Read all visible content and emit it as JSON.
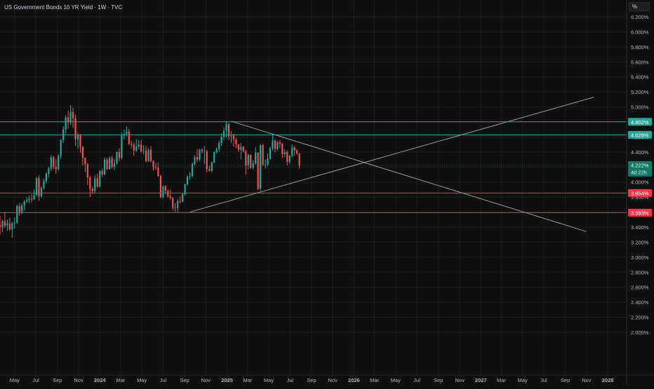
{
  "title": "US Government Bonds 10 YR Yield · 1W · TVC",
  "axis_unit_button": "%",
  "colors": {
    "background": "#0f0f0f",
    "up": "#26a69a",
    "down": "#ef5350",
    "grid": "#1c1c1c",
    "trendline": "#9a9a9a",
    "resistance": "#26a69a",
    "support": "#f23645"
  },
  "chart_data": {
    "type": "candlestick",
    "title": "US Government Bonds 10 YR Yield · 1W · TVC",
    "ylim": [
      1.9,
      6.3
    ],
    "y_ticks": [
      "6.200%",
      "6.000%",
      "5.800%",
      "5.600%",
      "5.400%",
      "5.200%",
      "5.000%",
      "4.800%",
      "4.600%",
      "4.400%",
      "4.200%",
      "4.000%",
      "3.800%",
      "3.600%",
      "3.400%",
      "3.200%",
      "3.000%",
      "2.800%",
      "2.600%",
      "2.400%",
      "2.200%",
      "2.000%"
    ],
    "x_ticks": [
      {
        "label": "May",
        "date": "2023-05-01",
        "bold": false
      },
      {
        "label": "Jul",
        "date": "2023-07-01",
        "bold": false
      },
      {
        "label": "Sep",
        "date": "2023-09-01",
        "bold": false
      },
      {
        "label": "Nov",
        "date": "2023-11-01",
        "bold": false
      },
      {
        "label": "2024",
        "date": "2024-01-01",
        "bold": true
      },
      {
        "label": "Mar",
        "date": "2024-03-01",
        "bold": false
      },
      {
        "label": "May",
        "date": "2024-05-01",
        "bold": false
      },
      {
        "label": "Jul",
        "date": "2024-07-01",
        "bold": false
      },
      {
        "label": "Sep",
        "date": "2024-09-01",
        "bold": false
      },
      {
        "label": "Nov",
        "date": "2024-11-01",
        "bold": false
      },
      {
        "label": "2025",
        "date": "2025-01-01",
        "bold": true
      },
      {
        "label": "Mar",
        "date": "2025-03-01",
        "bold": false
      },
      {
        "label": "May",
        "date": "2025-05-01",
        "bold": false
      },
      {
        "label": "Jul",
        "date": "2025-07-01",
        "bold": false
      },
      {
        "label": "Sep",
        "date": "2025-09-01",
        "bold": false
      },
      {
        "label": "Nov",
        "date": "2025-11-01",
        "bold": false
      },
      {
        "label": "2026",
        "date": "2026-01-01",
        "bold": true
      },
      {
        "label": "Mar",
        "date": "2026-03-01",
        "bold": false
      },
      {
        "label": "May",
        "date": "2026-05-01",
        "bold": false
      },
      {
        "label": "Jul",
        "date": "2026-07-01",
        "bold": false
      },
      {
        "label": "Sep",
        "date": "2026-09-01",
        "bold": false
      },
      {
        "label": "Nov",
        "date": "2026-11-01",
        "bold": false
      },
      {
        "label": "2027",
        "date": "2027-01-01",
        "bold": true
      },
      {
        "label": "Mar",
        "date": "2027-03-01",
        "bold": false
      },
      {
        "label": "May",
        "date": "2027-05-01",
        "bold": false
      },
      {
        "label": "Jul",
        "date": "2027-07-01",
        "bold": false
      },
      {
        "label": "Sep",
        "date": "2027-09-01",
        "bold": false
      },
      {
        "label": "Nov",
        "date": "2027-11-01",
        "bold": false
      },
      {
        "label": "2028",
        "date": "2028-01-01",
        "bold": true
      }
    ],
    "x_range": [
      "2023-03-20",
      "2028-01-25"
    ],
    "candles_start": "2023-03-20",
    "candle_interval_days": 7,
    "candles": [
      [
        3.43,
        3.55,
        3.3,
        3.4
      ],
      [
        3.4,
        3.5,
        3.33,
        3.48
      ],
      [
        3.48,
        3.6,
        3.39,
        3.42
      ],
      [
        3.42,
        3.5,
        3.35,
        3.45
      ],
      [
        3.45,
        3.52,
        3.35,
        3.37
      ],
      [
        3.37,
        3.47,
        3.26,
        3.45
      ],
      [
        3.45,
        3.53,
        3.38,
        3.46
      ],
      [
        3.46,
        3.7,
        3.44,
        3.68
      ],
      [
        3.68,
        3.72,
        3.55,
        3.6
      ],
      [
        3.6,
        3.72,
        3.57,
        3.69
      ],
      [
        3.69,
        3.76,
        3.62,
        3.74
      ],
      [
        3.74,
        3.8,
        3.72,
        3.76
      ],
      [
        3.76,
        3.82,
        3.72,
        3.78
      ],
      [
        3.78,
        3.84,
        3.73,
        3.77
      ],
      [
        3.77,
        3.9,
        3.76,
        3.83
      ],
      [
        3.83,
        4.07,
        3.81,
        4.05
      ],
      [
        4.05,
        4.09,
        3.75,
        3.81
      ],
      [
        3.81,
        3.94,
        3.79,
        3.92
      ],
      [
        3.92,
        4.04,
        3.9,
        4.01
      ],
      [
        4.01,
        4.13,
        3.98,
        4.11
      ],
      [
        4.11,
        4.2,
        4.06,
        4.18
      ],
      [
        4.18,
        4.36,
        4.15,
        4.33
      ],
      [
        4.33,
        4.35,
        4.17,
        4.2
      ],
      [
        4.2,
        4.31,
        4.11,
        4.17
      ],
      [
        4.17,
        4.37,
        4.15,
        4.35
      ],
      [
        4.35,
        4.57,
        4.31,
        4.56
      ],
      [
        4.56,
        4.74,
        4.52,
        4.7
      ],
      [
        4.7,
        4.89,
        4.64,
        4.86
      ],
      [
        4.86,
        4.95,
        4.71,
        4.8
      ],
      [
        4.8,
        5.02,
        4.76,
        4.93
      ],
      [
        4.93,
        4.99,
        4.72,
        4.85
      ],
      [
        4.85,
        4.9,
        4.48,
        4.57
      ],
      [
        4.57,
        4.66,
        4.44,
        4.63
      ],
      [
        4.63,
        4.64,
        4.39,
        4.47
      ],
      [
        4.47,
        4.48,
        4.22,
        4.32
      ],
      [
        4.32,
        4.33,
        4.13,
        4.24
      ],
      [
        4.24,
        4.25,
        3.96,
        4.06
      ],
      [
        4.06,
        4.08,
        3.8,
        3.91
      ],
      [
        3.91,
        3.94,
        3.84,
        3.88
      ],
      [
        3.88,
        4.09,
        3.86,
        4.05
      ],
      [
        4.05,
        4.11,
        3.92,
        3.94
      ],
      [
        3.94,
        4.16,
        3.93,
        4.15
      ],
      [
        4.15,
        4.18,
        4.07,
        4.1
      ],
      [
        4.1,
        4.33,
        4.09,
        4.3
      ],
      [
        4.3,
        4.32,
        4.16,
        4.17
      ],
      [
        4.17,
        4.34,
        4.17,
        4.32
      ],
      [
        4.32,
        4.35,
        4.18,
        4.2
      ],
      [
        4.2,
        4.31,
        4.16,
        4.25
      ],
      [
        4.25,
        4.41,
        4.23,
        4.4
      ],
      [
        4.4,
        4.45,
        4.28,
        4.32
      ],
      [
        4.32,
        4.66,
        4.3,
        4.62
      ],
      [
        4.62,
        4.7,
        4.57,
        4.64
      ],
      [
        4.64,
        4.74,
        4.61,
        4.67
      ],
      [
        4.67,
        4.71,
        4.49,
        4.51
      ],
      [
        4.51,
        4.55,
        4.45,
        4.5
      ],
      [
        4.5,
        4.53,
        4.35,
        4.42
      ],
      [
        4.42,
        4.57,
        4.4,
        4.47
      ],
      [
        4.47,
        4.56,
        4.44,
        4.5
      ],
      [
        4.5,
        4.56,
        4.39,
        4.41
      ],
      [
        4.41,
        4.49,
        4.37,
        4.42
      ],
      [
        4.42,
        4.48,
        4.26,
        4.28
      ],
      [
        4.28,
        4.45,
        4.27,
        4.43
      ],
      [
        4.43,
        4.48,
        4.26,
        4.28
      ],
      [
        4.28,
        4.29,
        4.15,
        4.2
      ],
      [
        4.2,
        4.25,
        4.16,
        4.19
      ],
      [
        4.19,
        4.26,
        4.07,
        4.08
      ],
      [
        4.08,
        4.1,
        3.78,
        3.8
      ],
      [
        3.8,
        3.95,
        3.78,
        3.94
      ],
      [
        3.94,
        3.96,
        3.84,
        3.88
      ],
      [
        3.88,
        3.9,
        3.79,
        3.81
      ],
      [
        3.81,
        3.9,
        3.76,
        3.79
      ],
      [
        3.79,
        3.8,
        3.62,
        3.66
      ],
      [
        3.66,
        3.72,
        3.6,
        3.65
      ],
      [
        3.65,
        3.78,
        3.6,
        3.75
      ],
      [
        3.75,
        3.81,
        3.71,
        3.74
      ],
      [
        3.74,
        3.85,
        3.73,
        3.84
      ],
      [
        3.84,
        3.98,
        3.82,
        3.97
      ],
      [
        3.97,
        4.09,
        3.95,
        4.07
      ],
      [
        4.07,
        4.13,
        4.03,
        4.08
      ],
      [
        4.08,
        4.26,
        4.06,
        4.24
      ],
      [
        4.24,
        4.36,
        4.22,
        4.33
      ],
      [
        4.33,
        4.44,
        4.26,
        4.3
      ],
      [
        4.3,
        4.44,
        4.28,
        4.43
      ],
      [
        4.43,
        4.45,
        4.38,
        4.41
      ],
      [
        4.41,
        4.48,
        4.24,
        4.41
      ],
      [
        4.41,
        4.43,
        4.13,
        4.17
      ],
      [
        4.17,
        4.22,
        4.14,
        4.15
      ],
      [
        4.15,
        4.27,
        4.13,
        4.26
      ],
      [
        4.26,
        4.41,
        4.25,
        4.4
      ],
      [
        4.4,
        4.46,
        4.38,
        4.44
      ],
      [
        4.44,
        4.55,
        4.4,
        4.52
      ],
      [
        4.52,
        4.65,
        4.48,
        4.6
      ],
      [
        4.6,
        4.73,
        4.56,
        4.68
      ],
      [
        4.68,
        4.81,
        4.59,
        4.77
      ],
      [
        4.77,
        4.79,
        4.56,
        4.61
      ],
      [
        4.61,
        4.68,
        4.52,
        4.62
      ],
      [
        4.62,
        4.64,
        4.47,
        4.57
      ],
      [
        4.57,
        4.59,
        4.45,
        4.5
      ],
      [
        4.5,
        4.51,
        4.4,
        4.43
      ],
      [
        4.43,
        4.52,
        4.3,
        4.47
      ],
      [
        4.47,
        4.48,
        4.39,
        4.41
      ],
      [
        4.41,
        4.43,
        4.1,
        4.22
      ],
      [
        4.22,
        4.38,
        4.17,
        4.36
      ],
      [
        4.36,
        4.37,
        4.18,
        4.19
      ],
      [
        4.19,
        4.29,
        4.17,
        4.25
      ],
      [
        4.25,
        4.46,
        4.23,
        4.39
      ],
      [
        4.39,
        4.4,
        3.89,
        3.91
      ],
      [
        3.91,
        4.5,
        3.88,
        4.49
      ],
      [
        4.49,
        4.51,
        4.21,
        4.23
      ],
      [
        4.23,
        4.3,
        4.18,
        4.23
      ],
      [
        4.23,
        4.38,
        4.21,
        4.31
      ],
      [
        4.31,
        4.47,
        4.3,
        4.45
      ],
      [
        4.45,
        4.63,
        4.42,
        4.55
      ],
      [
        4.55,
        4.57,
        4.4,
        4.44
      ],
      [
        4.44,
        4.55,
        4.42,
        4.53
      ],
      [
        4.53,
        4.56,
        4.45,
        4.51
      ],
      [
        4.51,
        4.52,
        4.32,
        4.37
      ],
      [
        4.37,
        4.44,
        4.33,
        4.4
      ],
      [
        4.4,
        4.42,
        4.22,
        4.27
      ],
      [
        4.27,
        4.36,
        4.24,
        4.35
      ],
      [
        4.35,
        4.5,
        4.33,
        4.46
      ],
      [
        4.46,
        4.48,
        4.35,
        4.42
      ],
      [
        4.42,
        4.44,
        4.36,
        4.38
      ],
      [
        4.38,
        4.39,
        4.18,
        4.22
      ]
    ],
    "horizontal_levels": [
      {
        "value": 4.802,
        "label": "4.802%",
        "kind": "resistance"
      },
      {
        "value": 4.628,
        "label": "4.628%",
        "kind": "resistance"
      },
      {
        "value": 3.854,
        "label": "3.854%",
        "kind": "support"
      },
      {
        "value": 3.593,
        "label": "3.593%",
        "kind": "support"
      }
    ],
    "trendlines": [
      {
        "from": {
          "date": "2025-01-13",
          "value": 4.81
        },
        "to": {
          "date": "2027-11-01",
          "value": 3.34
        }
      },
      {
        "from": {
          "date": "2024-09-16",
          "value": 3.6
        },
        "to": {
          "date": "2027-11-22",
          "value": 5.13
        }
      }
    ],
    "last_price": {
      "label": "4.222%",
      "value": 4.222,
      "countdown": "4d 22h"
    }
  }
}
